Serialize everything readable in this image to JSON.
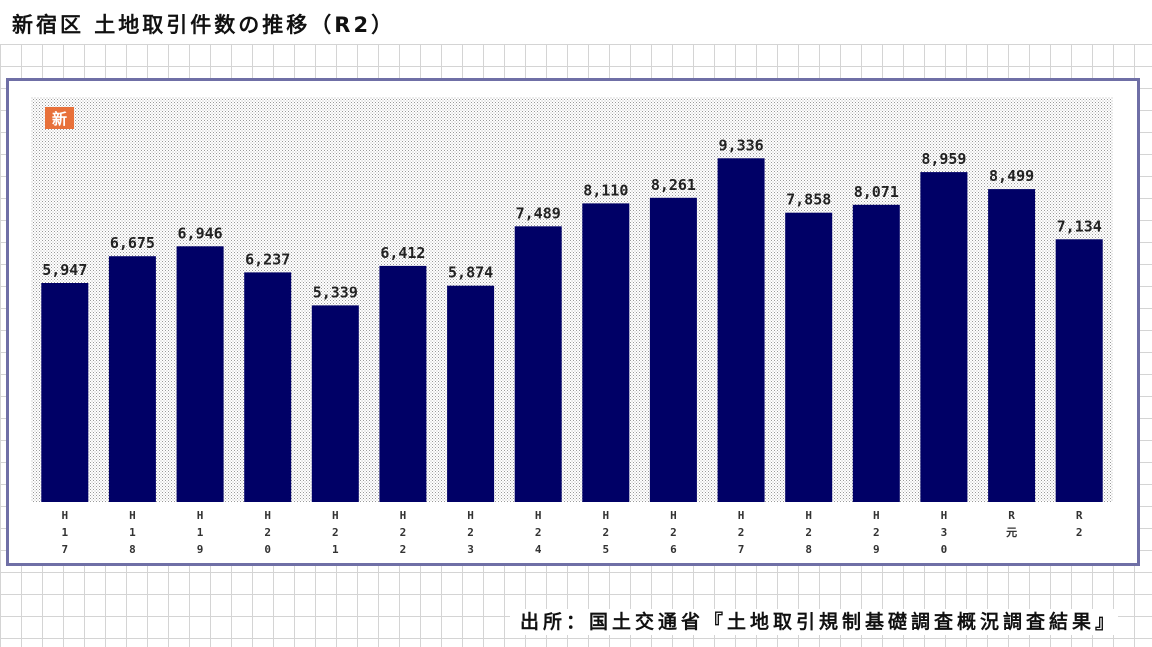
{
  "page_title": "新宿区 土地取引件数の推移（R2）",
  "source_note": "出所：国土交通省『土地取引規制基礎調査概況調査結果』",
  "badge_label": "新",
  "colors": {
    "bar": "#000066",
    "frame": "#6f6fa6",
    "badge": "#e8713a"
  },
  "chart_data": {
    "type": "bar",
    "title": "",
    "xlabel": "",
    "ylabel": "",
    "categories": [
      "H17",
      "H18",
      "H19",
      "H20",
      "H21",
      "H22",
      "H23",
      "H24",
      "H25",
      "H26",
      "H27",
      "H28",
      "H29",
      "H30",
      "R元",
      "R2"
    ],
    "category_glyphs": [
      [
        "H",
        "1",
        "7"
      ],
      [
        "H",
        "1",
        "8"
      ],
      [
        "H",
        "1",
        "9"
      ],
      [
        "H",
        "2",
        "0"
      ],
      [
        "H",
        "2",
        "1"
      ],
      [
        "H",
        "2",
        "2"
      ],
      [
        "H",
        "2",
        "3"
      ],
      [
        "H",
        "2",
        "4"
      ],
      [
        "H",
        "2",
        "5"
      ],
      [
        "H",
        "2",
        "6"
      ],
      [
        "H",
        "2",
        "7"
      ],
      [
        "H",
        "2",
        "8"
      ],
      [
        "H",
        "2",
        "9"
      ],
      [
        "H",
        "3",
        "0"
      ],
      [
        "R",
        "元"
      ],
      [
        "R",
        "2"
      ]
    ],
    "values": [
      5947,
      6675,
      6946,
      6237,
      5339,
      6412,
      5874,
      7489,
      8110,
      8261,
      9336,
      7858,
      8071,
      8959,
      8499,
      7134
    ],
    "labels": [
      "5,947",
      "6,675",
      "6,946",
      "6,237",
      "5,339",
      "6,412",
      "5,874",
      "7,489",
      "8,110",
      "8,261",
      "9,336",
      "7,858",
      "8,071",
      "8,959",
      "8,499",
      "7,134"
    ],
    "ylim": [
      0,
      11000
    ],
    "grid": false,
    "legend": "none"
  }
}
